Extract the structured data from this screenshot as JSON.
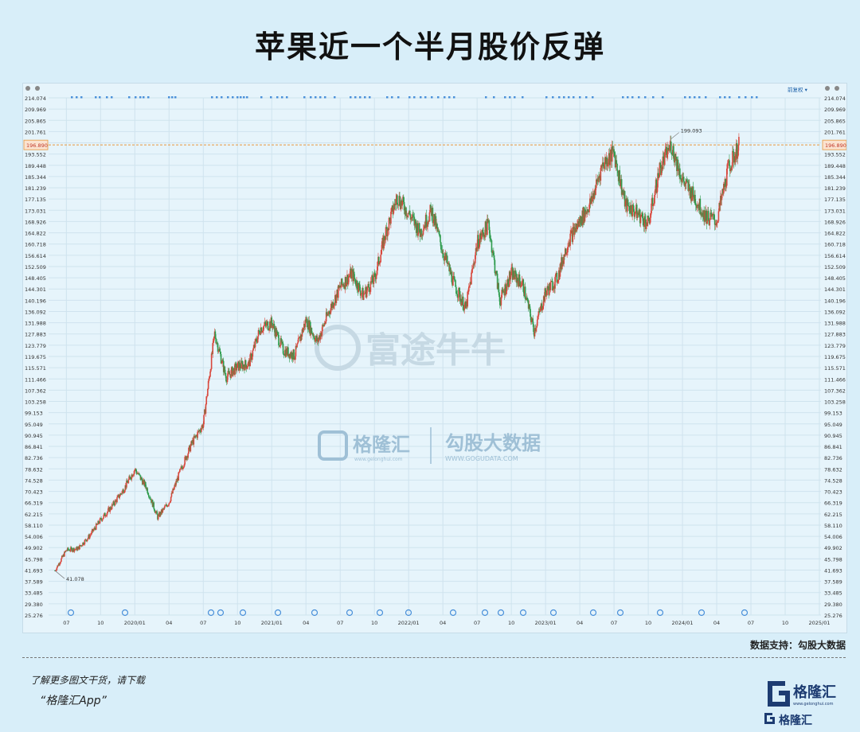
{
  "title": "苹果近一个半月股价反弹",
  "source_label": "数据支持：勾股大数据",
  "footer": {
    "line1": "了解更多图文干货，请下载",
    "line2": "“格隆汇App”",
    "logo_text": "格隆汇",
    "logo_url": "www.gelonghui.com"
  },
  "watermarks": {
    "futu": "富途牛牛",
    "glh": "格隆汇",
    "glh_url": "www.gelonghui.com",
    "gogu": "勾股大数据",
    "gogu_url": "WWW.GOGUDATA.COM"
  },
  "toolbar": {
    "adjust_label": "前复权"
  },
  "colors": {
    "up": "#d8473c",
    "down": "#2d9b4c",
    "price_line": "#e8963c",
    "marker": "#4a90d9"
  },
  "chart_data": {
    "type": "line",
    "title": "",
    "xlabel": "",
    "ylabel": "",
    "ylim": [
      25.276,
      214.074
    ],
    "y_ticks": [
      "214.074",
      "209.969",
      "205.865",
      "201.761",
      "196.890",
      "193.552",
      "189.448",
      "185.344",
      "181.239",
      "177.135",
      "173.031",
      "168.926",
      "164.822",
      "160.718",
      "156.614",
      "152.509",
      "148.405",
      "144.301",
      "140.196",
      "136.092",
      "131.988",
      "127.883",
      "123.779",
      "119.675",
      "115.571",
      "111.466",
      "107.362",
      "103.258",
      "99.153",
      "95.049",
      "90.945",
      "86.841",
      "82.736",
      "78.632",
      "74.528",
      "70.423",
      "66.319",
      "62.215",
      "58.110",
      "54.006",
      "49.902",
      "45.798",
      "41.693",
      "37.589",
      "33.485",
      "29.380",
      "25.276"
    ],
    "x_ticks": [
      "07",
      "10",
      "2020/01",
      "04",
      "07",
      "10",
      "2021/01",
      "04",
      "07",
      "10",
      "2022/01",
      "04",
      "07",
      "10",
      "2023/01",
      "04",
      "07",
      "10",
      "2024/01",
      "04",
      "07",
      "10",
      "2025/01"
    ],
    "current_price": "196.890",
    "annotations": {
      "high": "199.093",
      "low": "41.078"
    },
    "series": [
      {
        "x": [
          "2019-06",
          "2019-07",
          "2019-08",
          "2019-09",
          "2019-10",
          "2019-11",
          "2019-12",
          "2020-01",
          "2020-02",
          "2020-03",
          "2020-04",
          "2020-05",
          "2020-06",
          "2020-07",
          "2020-08",
          "2020-09",
          "2020-10",
          "2020-11",
          "2020-12",
          "2021-01",
          "2021-02",
          "2021-03",
          "2021-04",
          "2021-05",
          "2021-06",
          "2021-07",
          "2021-08",
          "2021-09",
          "2021-10",
          "2021-11",
          "2021-12",
          "2022-01",
          "2022-02",
          "2022-03",
          "2022-04",
          "2022-05",
          "2022-06",
          "2022-07",
          "2022-08",
          "2022-09",
          "2022-10",
          "2022-11",
          "2022-12",
          "2023-01",
          "2023-02",
          "2023-03",
          "2023-04",
          "2023-05",
          "2023-06",
          "2023-07",
          "2023-08",
          "2023-09",
          "2023-10",
          "2023-11",
          "2023-12",
          "2024-01",
          "2024-02",
          "2024-03",
          "2024-04",
          "2024-05",
          "2024-06"
        ],
        "y": [
          41.5,
          49.0,
          49.5,
          54.0,
          60.0,
          65.0,
          71.0,
          78.5,
          72.0,
          61.0,
          66.5,
          78.0,
          88.0,
          95.0,
          128.0,
          112.0,
          116.0,
          117.0,
          130.0,
          132.0,
          122.0,
          120.0,
          133.0,
          125.0,
          136.0,
          145.0,
          150.0,
          142.0,
          148.0,
          165.0,
          178.0,
          172.0,
          165.0,
          173.0,
          158.0,
          146.0,
          137.0,
          161.0,
          168.0,
          140.0,
          150.0,
          146.0,
          129.0,
          143.0,
          148.0,
          162.0,
          169.0,
          176.0,
          190.0,
          194.0,
          175.0,
          172.0,
          168.0,
          188.0,
          197.0,
          184.0,
          178.0,
          171.0,
          169.0,
          188.0,
          196.9
        ]
      }
    ]
  }
}
